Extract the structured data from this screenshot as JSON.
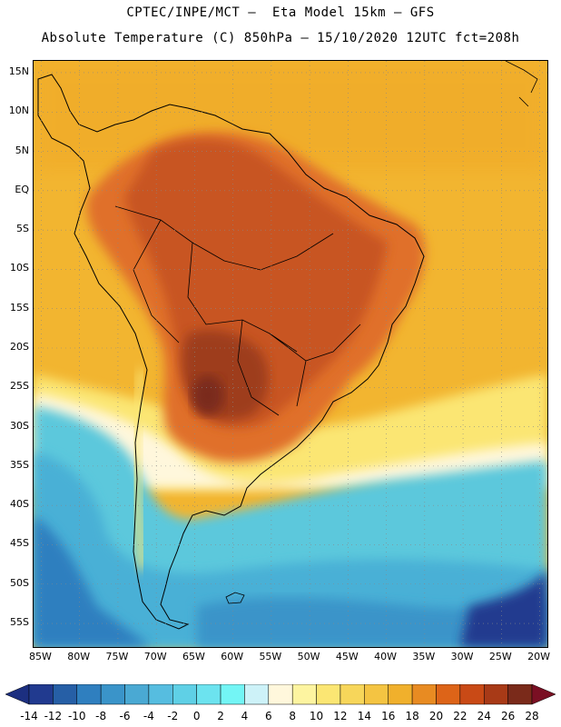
{
  "header": {
    "line1": "CPTEC/INPE/MCT –  Eta Model 15km – GFS",
    "line2": "Absolute Temperature (C) 850hPa – 15/10/2020 12UTC fct=208h"
  },
  "map": {
    "lon_range": [
      -86,
      -19
    ],
    "lat_range": [
      -58,
      16.5
    ],
    "lat_ticks": [
      {
        "value": 15,
        "label": "15N"
      },
      {
        "value": 10,
        "label": "10N"
      },
      {
        "value": 5,
        "label": "5N"
      },
      {
        "value": 0,
        "label": "EQ"
      },
      {
        "value": -5,
        "label": "5S"
      },
      {
        "value": -10,
        "label": "10S"
      },
      {
        "value": -15,
        "label": "15S"
      },
      {
        "value": -20,
        "label": "20S"
      },
      {
        "value": -25,
        "label": "25S"
      },
      {
        "value": -30,
        "label": "30S"
      },
      {
        "value": -35,
        "label": "35S"
      },
      {
        "value": -40,
        "label": "40S"
      },
      {
        "value": -45,
        "label": "45S"
      },
      {
        "value": -50,
        "label": "50S"
      },
      {
        "value": -55,
        "label": "55S"
      }
    ],
    "lon_ticks": [
      {
        "value": -85,
        "label": "85W"
      },
      {
        "value": -80,
        "label": "80W"
      },
      {
        "value": -75,
        "label": "75W"
      },
      {
        "value": -70,
        "label": "70W"
      },
      {
        "value": -65,
        "label": "65W"
      },
      {
        "value": -60,
        "label": "60W"
      },
      {
        "value": -55,
        "label": "55W"
      },
      {
        "value": -50,
        "label": "50W"
      },
      {
        "value": -45,
        "label": "45W"
      },
      {
        "value": -40,
        "label": "40W"
      },
      {
        "value": -35,
        "label": "35W"
      },
      {
        "value": -30,
        "label": "30W"
      },
      {
        "value": -25,
        "label": "25W"
      },
      {
        "value": -20,
        "label": "20W"
      }
    ],
    "colors": {
      "ocean_warm": "#f2b530",
      "land_warm": "#e0702a",
      "land_hot": "#b84a1c",
      "land_core": "#8e3419",
      "cool_band": "#fbeb82",
      "cold_ocean": "#5cc8dc",
      "deep_cold": "#2f7fbf"
    }
  },
  "colorbar": {
    "labels": [
      "-14",
      "-12",
      "-10",
      "-8",
      "-6",
      "-4",
      "-2",
      "0",
      "2",
      "4",
      "6",
      "8",
      "10",
      "12",
      "14",
      "16",
      "18",
      "20",
      "22",
      "24",
      "26",
      "28"
    ],
    "low_arrow": "#1c2f80",
    "high_arrow": "#7a0f23",
    "colors": [
      "#213a8f",
      "#265fa6",
      "#2f7fbf",
      "#3a94c9",
      "#4aa9d3",
      "#56bde0",
      "#5fd0e6",
      "#6ce3ef",
      "#73f5f5",
      "#cdf2f8",
      "#fff7dc",
      "#fdf4a0",
      "#fbe673",
      "#f7d65a",
      "#f4c442",
      "#f0b02c",
      "#e88b22",
      "#dd6418",
      "#c94a16",
      "#a83a17",
      "#7a2a1a"
    ]
  }
}
